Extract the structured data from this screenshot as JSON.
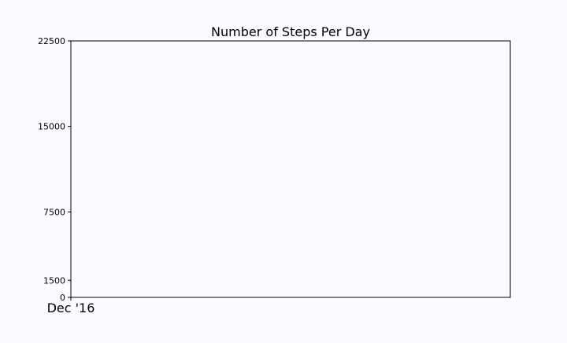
{
  "chart_data": {
    "type": "line",
    "title": "Number of Steps Per Day",
    "xlabel": "",
    "ylabel": "",
    "x_tick_labels": [
      "Dec '16"
    ],
    "y_ticks": [
      0,
      1500,
      7500,
      15000,
      22500
    ],
    "ylim": [
      0,
      22500
    ],
    "grid": false,
    "series": []
  }
}
